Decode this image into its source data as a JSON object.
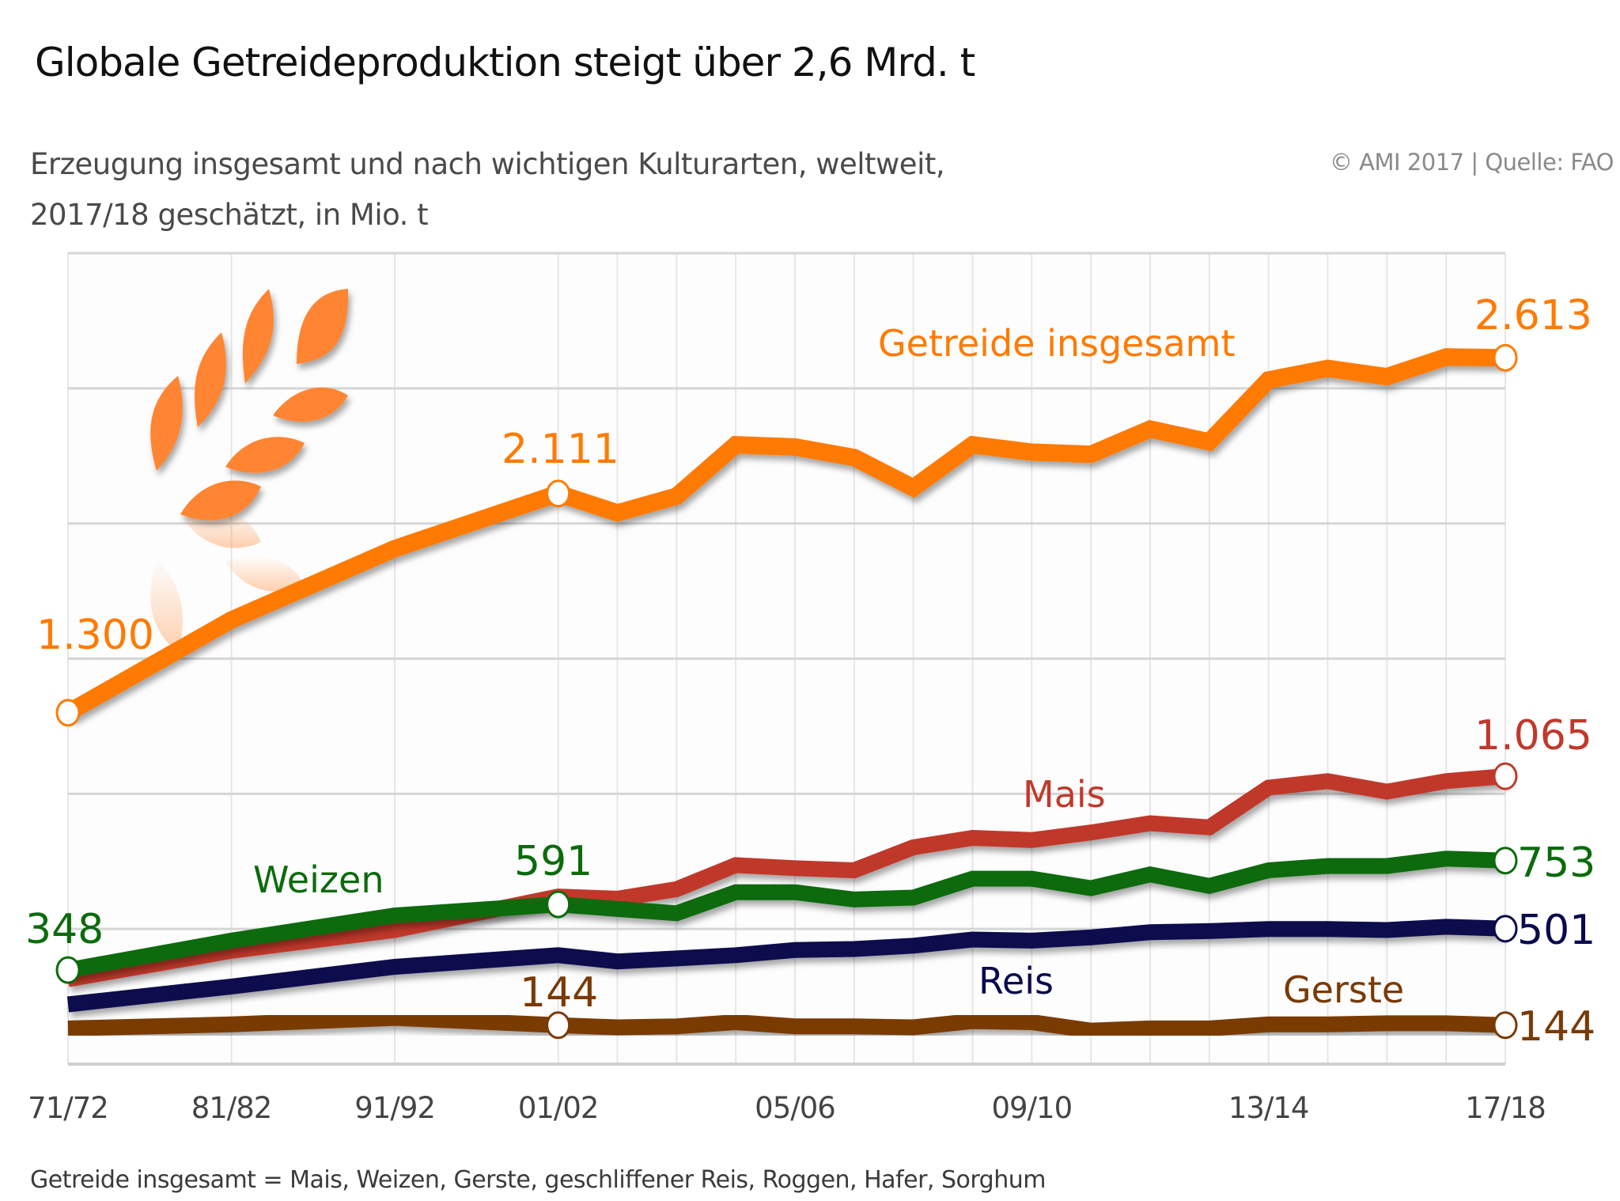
{
  "header": {
    "title": "Globale Getreideproduktion steigt über 2,6 Mrd. t",
    "subtitle_line1": "Erzeugung insgesamt und nach wichtigen Kulturarten, weltweit,",
    "subtitle_line2": "2017/18 geschätzt, in Mio. t",
    "source": "© AMI 2017 | Quelle: FAO"
  },
  "footnote": "Getreide insgesamt = Mais, Weizen, Gerste, geschliffener Reis, Roggen, Hafer, Sorghum",
  "icon": "wheat-ear-icon",
  "chart_data": {
    "type": "line",
    "title": "Globale Getreideproduktion steigt über 2,6 Mrd. t",
    "xlabel": "",
    "ylabel": "Mio. t",
    "ylim": [
      0,
      3000
    ],
    "grid": true,
    "y_gridlines": [
      0,
      500,
      1000,
      1500,
      2000,
      2500,
      3000
    ],
    "x": [
      "71/72",
      "81/82",
      "91/92",
      "01/02",
      "02/03",
      "03/04",
      "04/05",
      "05/06",
      "06/07",
      "07/08",
      "08/09",
      "09/10",
      "10/11",
      "11/12",
      "12/13",
      "13/14",
      "14/15",
      "15/16",
      "16/17",
      "17/18"
    ],
    "x_tick_labels": [
      "71/72",
      "81/82",
      "91/92",
      "01/02",
      "05/06",
      "09/10",
      "13/14",
      "17/18"
    ],
    "series": [
      {
        "name": "Getreide insgesamt",
        "color": "#FF7A00",
        "values": [
          1300,
          1643,
          1907,
          2111,
          2039,
          2101,
          2291,
          2283,
          2244,
          2132,
          2291,
          2264,
          2256,
          2349,
          2302,
          2531,
          2574,
          2543,
          2616,
          2613
        ],
        "labeled_points": [
          {
            "x": "71/72",
            "label": "1.300"
          },
          {
            "x": "01/02",
            "label": "2.111"
          },
          {
            "x": "17/18",
            "label": "2.613"
          }
        ]
      },
      {
        "name": "Mais",
        "color": "#C0392B",
        "values": [
          314,
          419,
          496,
          620,
          612,
          647,
          736,
          725,
          717,
          802,
          837,
          829,
          857,
          891,
          876,
          1023,
          1047,
          1008,
          1047,
          1065
        ],
        "labeled_points": [
          {
            "x": "17/18",
            "label": "1.065"
          }
        ]
      },
      {
        "name": "Weizen",
        "color": "#0B6B0B",
        "values": [
          348,
          457,
          550,
          591,
          574,
          558,
          636,
          636,
          609,
          616,
          686,
          686,
          651,
          702,
          659,
          717,
          733,
          733,
          760,
          753
        ],
        "labeled_points": [
          {
            "x": "71/72",
            "label": "348"
          },
          {
            "x": "01/02",
            "label": "591"
          },
          {
            "x": "17/18",
            "label": "753"
          }
        ]
      },
      {
        "name": "Reis",
        "color": "#0A0A4E",
        "values": [
          221,
          287,
          360,
          403,
          380,
          391,
          403,
          422,
          426,
          438,
          461,
          457,
          469,
          488,
          492,
          500,
          500,
          496,
          508,
          501
        ],
        "labeled_points": [
          {
            "x": "17/18",
            "label": "501"
          }
        ]
      },
      {
        "name": "Gerste",
        "color": "#7A3A05",
        "values": [
          132,
          147,
          171,
          144,
          136,
          140,
          155,
          140,
          140,
          136,
          159,
          155,
          124,
          132,
          132,
          147,
          147,
          151,
          151,
          144
        ],
        "labeled_points": [
          {
            "x": "01/02",
            "label": "144"
          },
          {
            "x": "17/18",
            "label": "144"
          }
        ]
      }
    ]
  }
}
